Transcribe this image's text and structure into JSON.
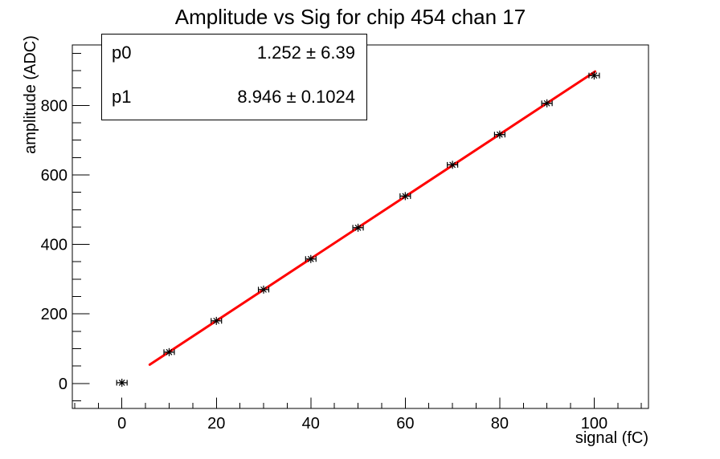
{
  "window": {
    "background": "#ffffff"
  },
  "title": "Amplitude vs Sig for chip 454 chan 17",
  "stats_box": {
    "rows": [
      {
        "param": "p0",
        "value": "1.252 ± 6.39"
      },
      {
        "param": "p1",
        "value": "8.946 ± 0.1024"
      }
    ]
  },
  "chart_data": {
    "type": "scatter",
    "title": "Amplitude vs Sig for chip 454 chan 17",
    "xlabel": "signal (fC)",
    "ylabel": "amplitude (ADC)",
    "xlim": [
      -10.5,
      111.5
    ],
    "ylim": [
      -72,
      974
    ],
    "x": [
      0,
      10,
      20,
      30,
      40,
      50,
      60,
      70,
      80,
      90,
      100
    ],
    "y": [
      2,
      90,
      180,
      270,
      358,
      448,
      539,
      629,
      716,
      806,
      886
    ],
    "x_error": 1,
    "x_major_ticks": [
      0,
      20,
      40,
      60,
      80,
      100
    ],
    "x_minor_step": 5,
    "y_major_ticks": [
      0,
      200,
      400,
      600,
      800
    ],
    "y_minor_step": 50,
    "grid": false,
    "marker": "asterisk",
    "marker_color": "#000000",
    "axis_color": "#000000",
    "fit": {
      "p0": 1.252,
      "p0_err": 6.39,
      "p1": 8.946,
      "p1_err": 0.1024,
      "x_range": [
        5.9,
        100.2
      ],
      "color": "#ff0000",
      "width": 3
    }
  }
}
